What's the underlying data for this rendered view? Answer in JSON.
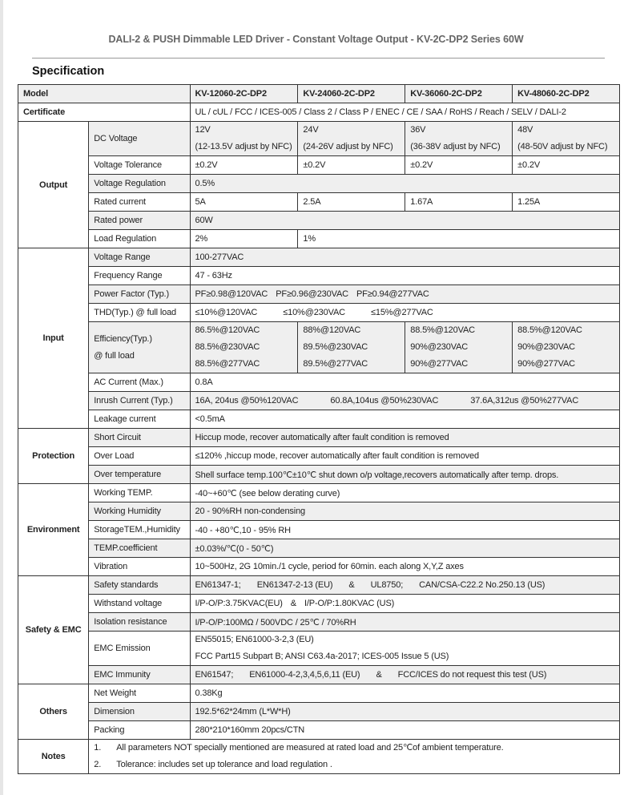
{
  "title": "DALI-2 & PUSH Dimmable LED Driver - Constant Voltage Output - KV-2C-DP2 Series 60W",
  "heading": "Specification",
  "header": {
    "label": "Model",
    "models": [
      "KV-12060-2C-DP2",
      "KV-24060-2C-DP2",
      "KV-36060-2C-DP2",
      "KV-48060-2C-DP2"
    ]
  },
  "certificate": {
    "label": "Certificate",
    "value": "UL / cUL / FCC / ICES-005 / Class 2 / Class P / ENEC / CE / SAA / RoHS / Reach / SELV / DALI-2"
  },
  "groups": [
    {
      "name": "Output",
      "rows": [
        {
          "label": [
            "DC Voltage"
          ],
          "values": [
            [
              "12V",
              "(12-13.5V adjust by NFC)"
            ],
            [
              "24V",
              "(24-26V adjust by NFC)"
            ],
            [
              "36V",
              "(36-38V adjust by NFC)"
            ],
            [
              "48V",
              "(48-50V adjust by NFC)"
            ]
          ]
        },
        {
          "label": [
            "Voltage Tolerance"
          ],
          "values": [
            [
              "±0.2V"
            ],
            [
              "±0.2V"
            ],
            [
              "±0.2V"
            ],
            [
              "±0.2V"
            ]
          ]
        },
        {
          "label": [
            "Voltage Regulation"
          ],
          "values": [
            [
              "0.5%"
            ]
          ]
        },
        {
          "label": [
            "Rated current"
          ],
          "values": [
            [
              "5A"
            ],
            [
              "2.5A"
            ],
            [
              "1.67A"
            ],
            [
              "1.25A"
            ]
          ]
        },
        {
          "label": [
            "Rated power"
          ],
          "values": [
            [
              "60W"
            ]
          ]
        },
        {
          "label": [
            "Load Regulation"
          ],
          "values": [
            [
              "2%"
            ],
            [
              "1%"
            ]
          ]
        }
      ]
    },
    {
      "name": "Input",
      "rows": [
        {
          "label": [
            "Voltage Range"
          ],
          "values": [
            [
              "100-277VAC"
            ]
          ]
        },
        {
          "label": [
            "Frequency Range"
          ],
          "values": [
            [
              "47 - 63Hz"
            ]
          ]
        },
        {
          "label": [
            "Power Factor (Typ.)"
          ],
          "parts": [
            "PF≥0.98@120VAC",
            "PF≥0.96@230VAC",
            "PF≥0.94@277VAC"
          ]
        },
        {
          "label": [
            "THD(Typ.) @ full load"
          ],
          "parts": [
            "≤10%@120VAC",
            "≤10%@230VAC",
            "≤15%@277VAC"
          ]
        },
        {
          "label": [
            "Efficiency(Typ.)",
            "@ full load"
          ],
          "values": [
            [
              "86.5%@120VAC",
              "88.5%@230VAC",
              "88.5%@277VAC"
            ],
            [
              "88%@120VAC",
              "89.5%@230VAC",
              "89.5%@277VAC"
            ],
            [
              "88.5%@120VAC",
              "90%@230VAC",
              "90%@277VAC"
            ],
            [
              "88.5%@120VAC",
              "90%@230VAC",
              "90%@277VAC"
            ]
          ]
        },
        {
          "label": [
            "AC Current (Max.)"
          ],
          "values": [
            [
              "0.8A"
            ]
          ]
        },
        {
          "label": [
            "Inrush Current (Typ.)"
          ],
          "parts": [
            "16A, 204us @50%120VAC",
            "60.8A,104us @50%230VAC",
            "37.6A,312us @50%277VAC"
          ]
        },
        {
          "label": [
            "Leakage current"
          ],
          "values": [
            [
              "<0.5mA"
            ]
          ]
        }
      ]
    },
    {
      "name": "Protection",
      "rows": [
        {
          "label": [
            "Short Circuit"
          ],
          "values": [
            [
              "Hiccup mode, recover automatically after fault condition is removed"
            ]
          ]
        },
        {
          "label": [
            "Over Load"
          ],
          "values": [
            [
              "≤120% ,hiccup mode, recover automatically after fault condition is removed"
            ]
          ]
        },
        {
          "label": [
            "Over temperature"
          ],
          "values": [
            [
              "Shell surface temp.100℃±10℃ shut down o/p voltage,recovers automatically after temp. drops."
            ]
          ]
        }
      ]
    },
    {
      "name": "Environment",
      "rows": [
        {
          "label": [
            "Working TEMP."
          ],
          "values": [
            [
              "-40~+60℃ (see below derating curve)"
            ]
          ]
        },
        {
          "label": [
            "Working Humidity"
          ],
          "values": [
            [
              "20 - 90%RH    non-condensing"
            ]
          ]
        },
        {
          "label": [
            "StorageTEM.,Humidity"
          ],
          "values": [
            [
              "-40 - +80℃,10 - 95% RH"
            ]
          ]
        },
        {
          "label": [
            "TEMP.coefficient"
          ],
          "values": [
            [
              "±0.03%/℃(0 - 50℃)"
            ]
          ]
        },
        {
          "label": [
            "Vibration"
          ],
          "values": [
            [
              "10~500Hz, 2G 10min./1 cycle, period for 60min. each along X,Y,Z axes"
            ]
          ]
        }
      ]
    },
    {
      "name": "Safety & EMC",
      "rows": [
        {
          "label": [
            "Safety standards"
          ],
          "parts": [
            "EN61347-1;",
            "EN61347-2-13 (EU)",
            "&",
            "UL8750;",
            "CAN/CSA-C22.2 No.250.13 (US)"
          ]
        },
        {
          "label": [
            "Withstand voltage"
          ],
          "parts": [
            "I/P-O/P:3.75KVAC(EU)",
            "&",
            "I/P-O/P:1.80KVAC (US)"
          ]
        },
        {
          "label": [
            "Isolation resistance"
          ],
          "values": [
            [
              "I/P-O/P:100MΩ / 500VDC / 25℃ / 70%RH"
            ]
          ]
        },
        {
          "label": [
            "EMC Emission"
          ],
          "values": [
            [
              "EN55015;     EN61000-3-2,3 (EU)",
              "FCC Part15 Subpart B;     ANSI C63.4a-2017;      ICES-005 Issue 5 (US)"
            ]
          ]
        },
        {
          "label": [
            "EMC Immunity"
          ],
          "parts": [
            "EN61547;",
            "EN61000-4-2,3,4,5,6,11 (EU)",
            "&",
            "FCC/ICES do not request this test (US)"
          ]
        }
      ]
    },
    {
      "name": "Others",
      "rows": [
        {
          "label": [
            "Net Weight"
          ],
          "values": [
            [
              "0.38Kg"
            ]
          ]
        },
        {
          "label": [
            "Dimension"
          ],
          "values": [
            [
              "192.5*62*24mm (L*W*H)"
            ]
          ]
        },
        {
          "label": [
            "Packing"
          ],
          "values": [
            [
              "280*210*160mm       20pcs/CTN"
            ]
          ]
        }
      ]
    }
  ],
  "notes": {
    "label": "Notes",
    "items": [
      {
        "num": "1.",
        "text": "All parameters NOT specially mentioned are measured at rated load and 25℃of ambient temperature."
      },
      {
        "num": "2.",
        "text": "Tolerance: includes set up tolerance and load regulation ."
      }
    ]
  }
}
